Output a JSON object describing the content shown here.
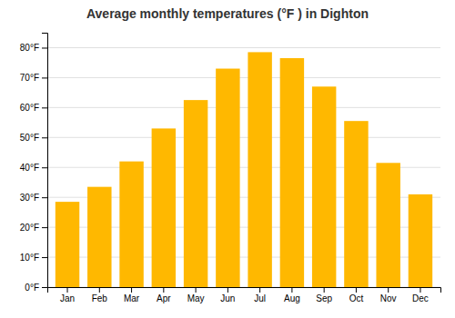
{
  "chart_data": {
    "type": "bar",
    "title": "Average monthly temperatures (°F ) in Dighton",
    "categories": [
      "Jan",
      "Feb",
      "Mar",
      "Apr",
      "May",
      "Jun",
      "Jul",
      "Aug",
      "Sep",
      "Oct",
      "Nov",
      "Dec"
    ],
    "values": [
      28.5,
      33.5,
      42.0,
      53.0,
      62.5,
      73.0,
      78.5,
      76.5,
      67.0,
      55.5,
      41.5,
      31.0
    ],
    "color": "#FFB800",
    "ylim": [
      0,
      85
    ],
    "yticks": [
      {
        "value": 0,
        "label": "0°F"
      },
      {
        "value": 10,
        "label": "10°F"
      },
      {
        "value": 20,
        "label": "20°F"
      },
      {
        "value": 30,
        "label": "30°F"
      },
      {
        "value": 40,
        "label": "40°F"
      },
      {
        "value": 50,
        "label": "50°F"
      },
      {
        "value": 60,
        "label": "60°F"
      },
      {
        "value": 70,
        "label": "70°F"
      },
      {
        "value": 80,
        "label": "80°F"
      }
    ],
    "grid": true
  }
}
